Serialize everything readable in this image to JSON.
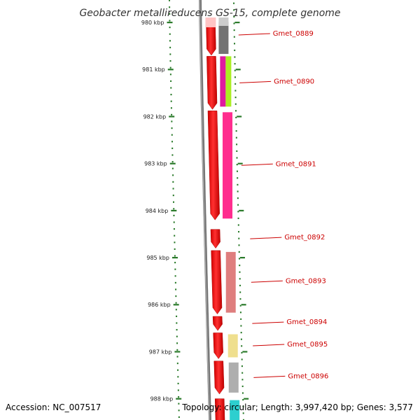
{
  "title": "Geobacter metallireducens GS-15, complete genome",
  "footer": {
    "accession": "Accession: NC_007517",
    "topology": "Topology: circular; Length: 3,997,420 bp; Genes: 3,577"
  },
  "ticks": [
    "980 kbp",
    "981 kbp",
    "982 kbp",
    "983 kbp",
    "984 kbp",
    "985 kbp",
    "986 kbp",
    "987 kbp",
    "988 kbp"
  ],
  "genes": [
    {
      "label": "Gmet_0889",
      "start": 979.955,
      "end": 980.7,
      "feature_color": "#6b6b6b"
    },
    {
      "label": "Gmet_0890",
      "start": 980.72,
      "end": 981.85,
      "feature_color": "#e01aa0",
      "feature_color2": "#aaee22"
    },
    {
      "label": "Gmet_0891",
      "start": 981.88,
      "end": 984.2,
      "feature_color": "#ff2288"
    },
    {
      "label": "Gmet_0892",
      "start": 984.4,
      "end": 984.8,
      "feature_color": null
    },
    {
      "label": "Gmet_0893",
      "start": 984.85,
      "end": 986.2,
      "feature_color": "#dd7777"
    },
    {
      "label": "Gmet_0894",
      "start": 986.25,
      "end": 986.55,
      "feature_color": null
    },
    {
      "label": "Gmet_0895",
      "start": 986.6,
      "end": 987.15,
      "feature_color": "#eedd88"
    },
    {
      "label": "Gmet_0896",
      "start": 987.2,
      "end": 987.9,
      "feature_color": "#aaaaaa"
    },
    {
      "label": "",
      "start": 988.0,
      "end": 988.6,
      "feature_color": "#22cccc"
    }
  ],
  "colors": {
    "gene": "#ff0000",
    "backbone": "#777777",
    "tick": "#2a7a2a",
    "label": "#cc0000"
  }
}
